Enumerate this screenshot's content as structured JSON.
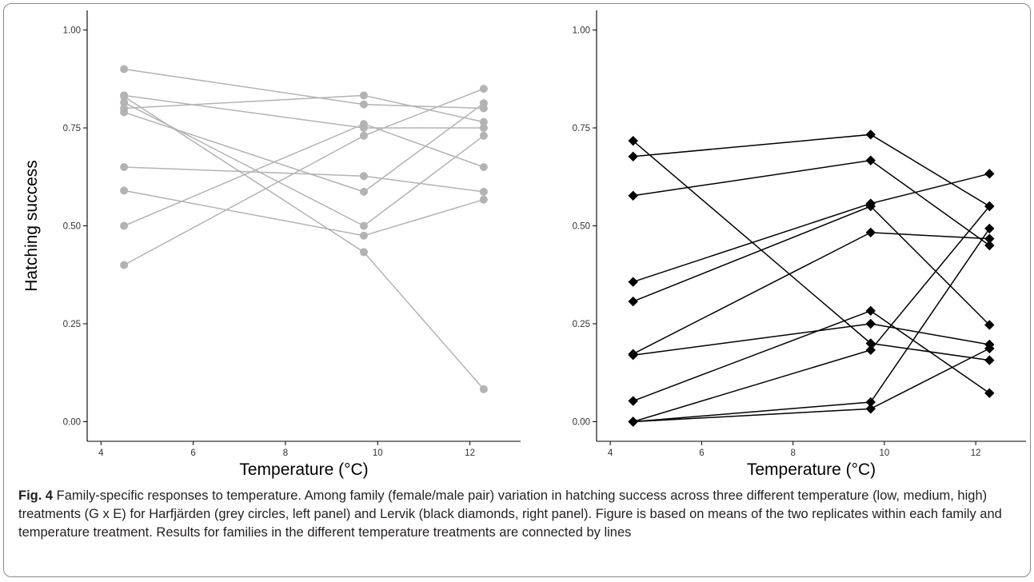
{
  "chart_data": [
    {
      "type": "line",
      "panel": "left",
      "xlabel": "Temperature (°C)",
      "ylabel": "Hatching success",
      "xlim": [
        3.7,
        13.1
      ],
      "ylim": [
        -0.05,
        1.05
      ],
      "xticks": [
        4,
        6,
        8,
        10,
        12
      ],
      "xtick_labels": [
        "4",
        "6",
        "8",
        "10",
        "12"
      ],
      "yticks": [
        0.0,
        0.25,
        0.5,
        0.75,
        1.0
      ],
      "ytick_labels": [
        "0.00",
        "0.25",
        "0.50",
        "0.75",
        "1.00"
      ],
      "grid": false,
      "marker": "circle",
      "color": "#b3b3b3",
      "x": [
        4.5,
        9.7,
        12.3
      ],
      "series": [
        {
          "values": [
            0.9,
            0.81,
            0.8
          ]
        },
        {
          "values": [
            0.833,
            0.75,
            0.75
          ]
        },
        {
          "values": [
            0.815,
            0.5,
            0.73
          ]
        },
        {
          "values": [
            0.8,
            0.833,
            0.765
          ]
        },
        {
          "values": [
            0.79,
            0.587,
            0.813
          ]
        },
        {
          "values": [
            0.83,
            0.433,
            0.083
          ]
        },
        {
          "values": [
            0.65,
            0.627,
            0.587
          ]
        },
        {
          "values": [
            0.59,
            0.475,
            0.567
          ]
        },
        {
          "values": [
            0.5,
            0.76,
            0.65
          ]
        },
        {
          "values": [
            0.4,
            0.73,
            0.85
          ]
        }
      ]
    },
    {
      "type": "line",
      "panel": "right",
      "xlabel": "Temperature (°C)",
      "ylabel": "",
      "xlim": [
        3.7,
        13.1
      ],
      "ylim": [
        -0.05,
        1.05
      ],
      "xticks": [
        4,
        6,
        8,
        10,
        12
      ],
      "xtick_labels": [
        "4",
        "6",
        "8",
        "10",
        "12"
      ],
      "yticks": [
        0.0,
        0.25,
        0.5,
        0.75,
        1.0
      ],
      "ytick_labels": [
        "0.00",
        "0.25",
        "0.50",
        "0.75",
        "1.00"
      ],
      "grid": false,
      "marker": "diamond",
      "color": "#000000",
      "x": [
        4.5,
        9.7,
        12.3
      ],
      "series": [
        {
          "values": [
            0.717,
            0.2,
            0.157
          ]
        },
        {
          "values": [
            0.677,
            0.733,
            0.55
          ]
        },
        {
          "values": [
            0.577,
            0.667,
            0.45
          ]
        },
        {
          "values": [
            0.357,
            0.557,
            0.633
          ]
        },
        {
          "values": [
            0.307,
            0.55,
            0.247
          ]
        },
        {
          "values": [
            0.173,
            0.483,
            0.467
          ]
        },
        {
          "values": [
            0.17,
            0.25,
            0.197
          ]
        },
        {
          "values": [
            0.053,
            0.283,
            0.073
          ]
        },
        {
          "values": [
            0.0,
            0.183,
            0.55
          ]
        },
        {
          "values": [
            0.0,
            0.05,
            0.493
          ]
        },
        {
          "values": [
            0.0,
            0.033,
            0.187
          ]
        }
      ]
    }
  ],
  "caption": {
    "label": "Fig. 4",
    "text": " Family-specific responses to temperature. Among family (female/male pair) variation in hatching success across three different temperature (low, medium, high) treatments (G x E) for Harfjärden (grey circles, left panel) and Lervik (black diamonds, right panel). Figure is based on means of the two replicates within each family and temperature treatment. Results for families in the different temperature treatments are connected by lines"
  }
}
